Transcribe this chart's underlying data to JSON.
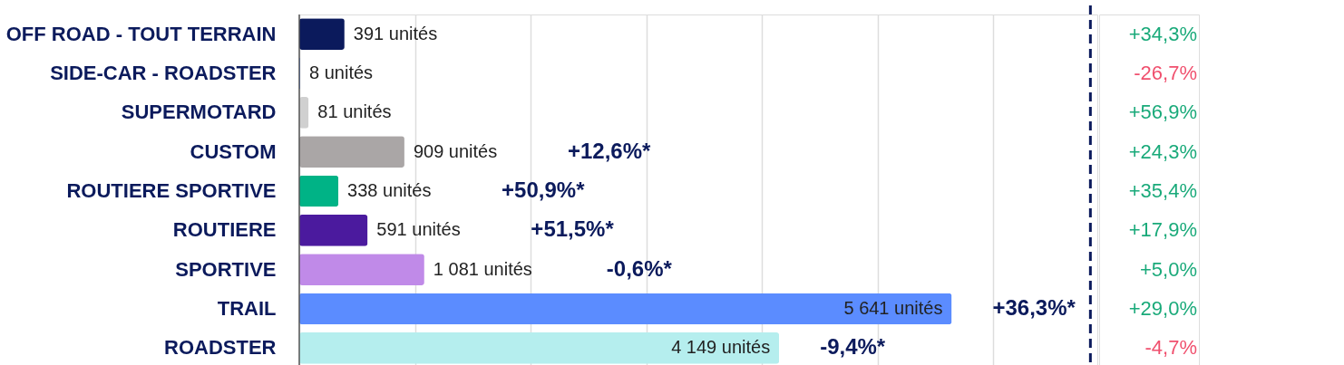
{
  "chart_data": {
    "type": "bar",
    "orientation": "horizontal",
    "categories": [
      "OFF ROAD - TOUT TERRAIN",
      "SIDE-CAR - ROADSTER",
      "SUPERMOTARD",
      "CUSTOM",
      "ROUTIERE SPORTIVE",
      "ROUTIERE",
      "SPORTIVE",
      "TRAIL",
      "ROADSTER"
    ],
    "values": [
      391,
      8,
      81,
      909,
      338,
      591,
      1081,
      5641,
      4149
    ],
    "colors": [
      "#0b1a5c",
      "#5b8cff",
      "#d0d0d0",
      "#aaa6a6",
      "#00b386",
      "#4b1a9e",
      "#c08ae8",
      "#5b8cff",
      "#b5eeee"
    ],
    "value_labels": [
      "391 unités",
      "8 unités",
      "81 unités",
      "909 unités",
      "338 unités",
      "591 unités",
      "1 081 unités",
      "5 641 unités",
      "4 149 unités"
    ],
    "xlim": [
      0,
      6900
    ],
    "xticks": [
      {
        "value": 0,
        "label": null
      },
      {
        "value": 1000,
        "label": null
      },
      {
        "value": 2000,
        "label": null
      },
      {
        "value": 3000,
        "label": null
      },
      {
        "value": 4000,
        "label": null
      },
      {
        "value": 5000,
        "label": null
      },
      {
        "value": 6000,
        "label": null
      }
    ],
    "grid": "x",
    "tick_labels": "y",
    "ref_lines": [
      {
        "axis": "x",
        "value": 6840,
        "label": null,
        "color": "#0b1a5c",
        "line_style": "dashed"
      }
    ],
    "annotations": [
      "+34,3%",
      "-26,7%",
      "+56,9%",
      "+24,3%",
      "+35,4%",
      "+17,9%",
      "+5,0%",
      "+29,0%",
      "-4,7%",
      "+12,6%*",
      "+50,9%*",
      "+51,5%*",
      "-0,6%*",
      "+36,3%*",
      "-9,4%*"
    ]
  }
}
